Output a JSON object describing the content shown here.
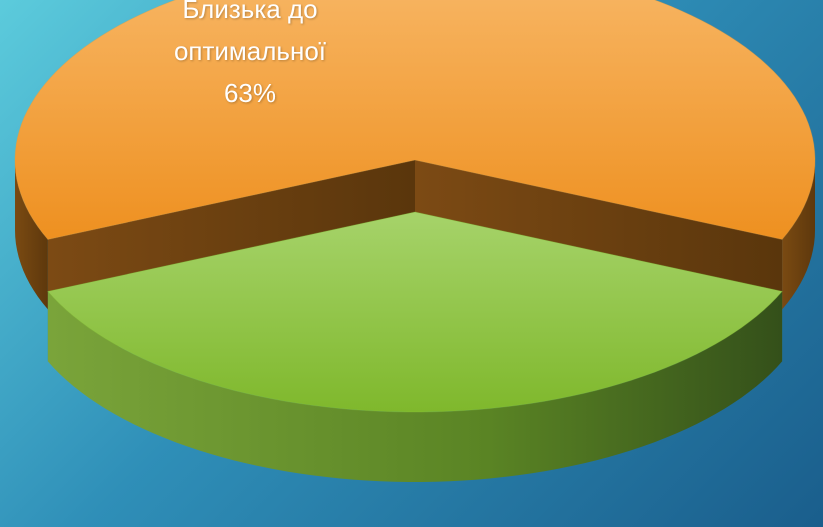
{
  "chart_data": {
    "type": "pie",
    "categories": [
      "Близька до оптимальної",
      null
    ],
    "values": [
      63,
      37
    ],
    "value_labels": [
      "63%",
      null
    ],
    "colors": [
      "#f29a30",
      "#8cc43c"
    ]
  }
}
